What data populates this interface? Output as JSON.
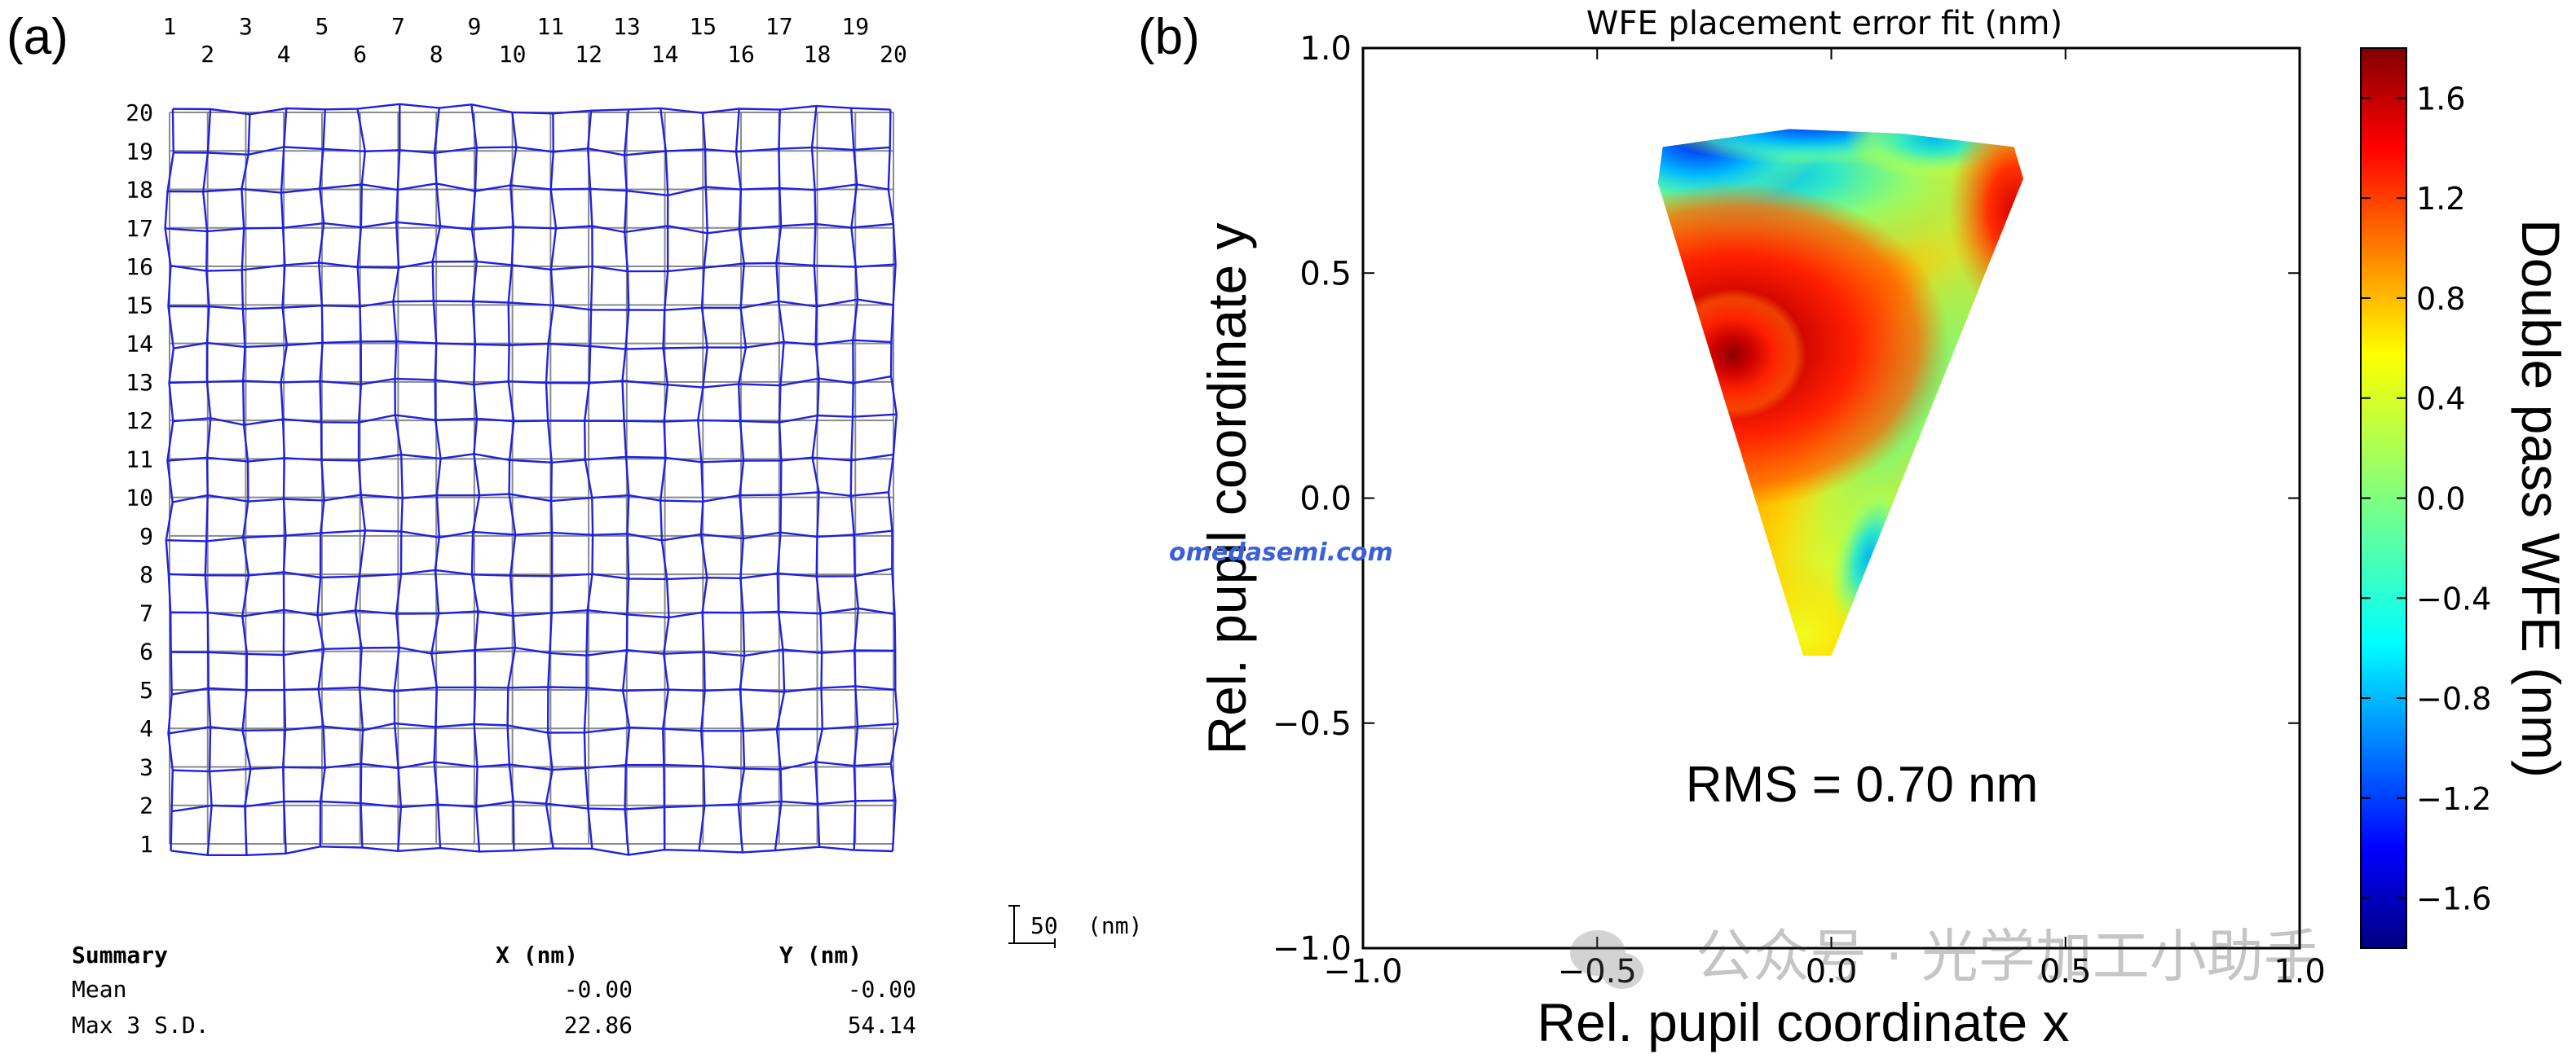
{
  "panel_a": {
    "label": "(a)",
    "scale_bar": {
      "value": "50",
      "unit": "(nm)"
    },
    "summary": {
      "title": "Summary",
      "headers": [
        "X (nm)",
        "Y (nm)"
      ],
      "rows": [
        {
          "label": "Mean",
          "x": "-0.00",
          "y": "-0.00"
        },
        {
          "label": "Max 3 S.D.",
          "x": "22.86",
          "y": "54.14"
        }
      ]
    }
  },
  "panel_b": {
    "label": "(b)",
    "rms_text": "RMS = 0.70 nm",
    "watermark": "omedasemi.com",
    "watermark2": "公众号 · 光学加工小助手"
  },
  "chart_data": [
    {
      "type": "grid-distortion",
      "title": "",
      "x_labels": [
        "1",
        "2",
        "3",
        "4",
        "5",
        "6",
        "7",
        "8",
        "9",
        "10",
        "11",
        "12",
        "13",
        "14",
        "15",
        "16",
        "17",
        "18",
        "19",
        "20"
      ],
      "y_labels": [
        "1",
        "2",
        "3",
        "4",
        "5",
        "6",
        "7",
        "8",
        "9",
        "10",
        "11",
        "12",
        "13",
        "14",
        "15",
        "16",
        "17",
        "18",
        "19",
        "20"
      ],
      "grid_size": [
        20,
        20
      ],
      "mean_x_nm": -0.0,
      "mean_y_nm": -0.0,
      "max_3sd_x_nm": 22.86,
      "max_3sd_y_nm": 54.14,
      "scale_bar_nm": 50
    },
    {
      "type": "heatmap",
      "title": "WFE placement error fit (nm)",
      "xlabel": "Rel. pupil coordinate x",
      "ylabel": "Rel. pupil coordinate y",
      "xlim": [
        -1.0,
        1.0
      ],
      "ylim": [
        -1.0,
        1.0
      ],
      "x_ticks": [
        -1.0,
        -0.5,
        0.0,
        0.5,
        1.0
      ],
      "y_ticks": [
        -1.0,
        -0.5,
        0.0,
        0.5,
        1.0
      ],
      "x_tick_labels": [
        "−1.0",
        "−0.5",
        "0.0",
        "0.5",
        "1.0"
      ],
      "y_tick_labels": [
        "−1.0",
        "−0.5",
        "0.0",
        "0.5",
        "1.0"
      ],
      "colorbar": {
        "label": "Double pass WFE (nm)",
        "range": [
          -1.8,
          1.8
        ],
        "ticks": [
          1.6,
          1.2,
          0.8,
          0.4,
          0.0,
          -0.4,
          -0.8,
          -1.2,
          -1.6
        ],
        "tick_labels": [
          "1.6",
          "1.2",
          "0.8",
          "0.4",
          "0.0",
          "−0.4",
          "−0.8",
          "−1.2",
          "−1.6"
        ]
      },
      "region_vertices": [
        [
          -0.36,
          0.78
        ],
        [
          -0.09,
          0.82
        ],
        [
          0.15,
          0.81
        ],
        [
          0.39,
          0.78
        ],
        [
          0.41,
          0.71
        ],
        [
          0.0,
          -0.35
        ],
        [
          -0.06,
          -0.35
        ],
        [
          -0.37,
          0.7
        ]
      ],
      "features": [
        {
          "name": "max",
          "x": -0.21,
          "y": 0.33,
          "value": 1.6
        },
        {
          "name": "min-top",
          "x": -0.25,
          "y": 0.78,
          "value": -1.6
        },
        {
          "name": "local-min",
          "x": 0.08,
          "y": -0.13,
          "value": -0.5
        },
        {
          "name": "right-high",
          "x": 0.38,
          "y": 0.65,
          "value": 1.4
        }
      ],
      "rms_nm": 0.7
    }
  ]
}
